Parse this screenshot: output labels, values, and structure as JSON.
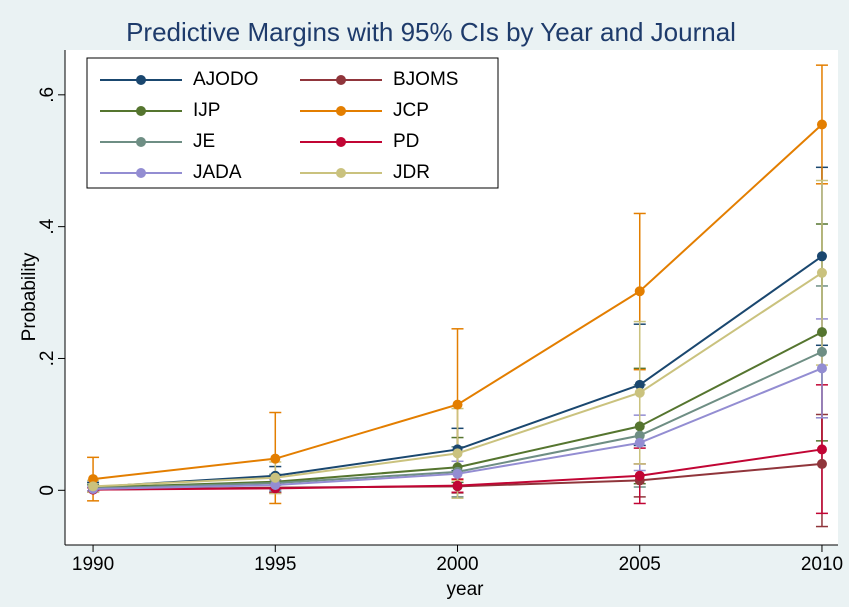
{
  "chart_data": {
    "type": "line",
    "title": "Predictive Margins with 95% CIs by Year and Journal",
    "xlabel": "year",
    "ylabel": "Probability",
    "x": [
      1990,
      1995,
      2000,
      2005,
      2010
    ],
    "xlim": [
      1989.23,
      2010.44
    ],
    "xticks": [
      1990,
      1995,
      2000,
      2005,
      2010
    ],
    "ylim": [
      -0.083,
      0.668
    ],
    "yticks": [
      0,
      {
        "value": 0.2,
        "label": ".2"
      },
      {
        "value": 0.4,
        "label": ".4"
      },
      {
        "value": 0.6,
        "label": ".6"
      }
    ],
    "grid": false,
    "legend": "top-left",
    "series": [
      {
        "name": "AJODO",
        "color": "#1a476f",
        "values": [
          0.005,
          0.022,
          0.062,
          0.16,
          0.355
        ],
        "ci_low": [
          -0.002,
          0.008,
          0.03,
          0.068,
          0.22
        ],
        "ci_high": [
          0.012,
          0.036,
          0.094,
          0.252,
          0.49
        ]
      },
      {
        "name": "BJOMS",
        "color": "#90353b",
        "values": [
          0.001,
          0.004,
          0.006,
          0.015,
          0.04
        ],
        "ci_low": [
          -0.002,
          -0.003,
          -0.004,
          -0.01,
          -0.055
        ],
        "ci_high": [
          0.004,
          0.011,
          0.016,
          0.04,
          0.115
        ]
      },
      {
        "name": "IJP",
        "color": "#55752f",
        "values": [
          0.004,
          0.013,
          0.035,
          0.097,
          0.24
        ],
        "ci_low": [
          -0.001,
          0.002,
          0.012,
          0.01,
          0.075
        ],
        "ci_high": [
          0.009,
          0.024,
          0.08,
          0.185,
          0.404
        ]
      },
      {
        "name": "JCP",
        "color": "#e37e00",
        "values": [
          0.017,
          0.048,
          0.13,
          0.302,
          0.555
        ],
        "ci_low": [
          -0.016,
          -0.02,
          0.016,
          0.183,
          0.465
        ],
        "ci_high": [
          0.05,
          0.118,
          0.245,
          0.42,
          0.645
        ]
      },
      {
        "name": "JE",
        "color": "#6e8e84",
        "values": [
          0.003,
          0.011,
          0.028,
          0.083,
          0.21
        ],
        "ci_low": [
          -0.002,
          -0.002,
          -0.01,
          0.005,
          0.11
        ],
        "ci_high": [
          0.008,
          0.024,
          0.066,
          0.16,
          0.31
        ]
      },
      {
        "name": "PD",
        "color": "#c10534",
        "values": [
          0.001,
          0.003,
          0.007,
          0.022,
          0.062
        ],
        "ci_low": [
          -0.002,
          -0.004,
          -0.003,
          -0.02,
          -0.035
        ],
        "ci_high": [
          0.004,
          0.01,
          0.017,
          0.064,
          0.16
        ]
      },
      {
        "name": "JADA",
        "color": "#938dd2",
        "values": [
          0.002,
          0.008,
          0.025,
          0.072,
          0.185
        ],
        "ci_low": [
          -0.001,
          0.0,
          0.006,
          0.03,
          0.11
        ],
        "ci_high": [
          0.005,
          0.016,
          0.044,
          0.114,
          0.26
        ]
      },
      {
        "name": "JDR",
        "color": "#cac27e",
        "values": [
          0.006,
          0.019,
          0.056,
          0.148,
          0.33
        ],
        "ci_low": [
          -0.003,
          -0.005,
          -0.012,
          0.04,
          0.19
        ],
        "ci_high": [
          0.015,
          0.043,
          0.124,
          0.256,
          0.47
        ]
      }
    ]
  }
}
